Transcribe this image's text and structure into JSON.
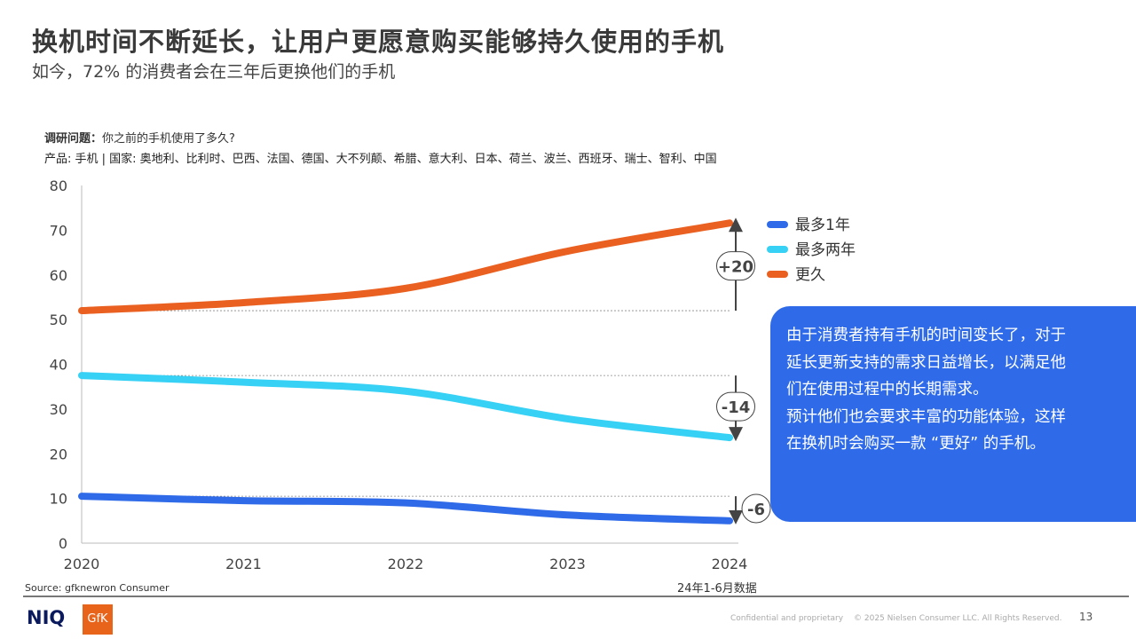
{
  "header": {
    "title": "换机时间不断延长，让用户更愿意购买能够持久使用的手机",
    "subtitle": "如今，72% 的消费者会在三年后更换他们的手机"
  },
  "survey": {
    "question_label": "调研问题：",
    "question": "你之前的手机使用了多久?",
    "product_line": "产品: 手机 | 国家: 奥地利、比利时、巴西、法国、德国、大不列颠、希腊、意大利、日本、荷兰、波兰、西班牙、瑞士、智利、中国"
  },
  "chart_data": {
    "type": "line",
    "x": [
      2020,
      2021,
      2022,
      2023,
      2024
    ],
    "x_tick_labels": [
      "2020",
      "2021",
      "2022",
      "2023",
      "2024"
    ],
    "y_ticks": [
      "0",
      "10",
      "20",
      "30",
      "40",
      "50",
      "60",
      "70",
      "80"
    ],
    "ylim": [
      0,
      80
    ],
    "grid": false,
    "legend_placement": "right",
    "series": [
      {
        "name": "最多1年",
        "color": "#2f6be9",
        "values": [
          10.5,
          9.5,
          9,
          6.3,
          5
        ]
      },
      {
        "name": "最多两年",
        "color": "#36d1f5",
        "values": [
          37.5,
          36,
          34,
          27.8,
          23.6
        ]
      },
      {
        "name": "更久",
        "color": "#ea6020",
        "values": [
          52,
          53.8,
          57,
          65.3,
          71.6
        ]
      }
    ],
    "annotations": [
      {
        "series": "更久",
        "label": "+20",
        "from": 52,
        "to": 72
      },
      {
        "series": "最多两年",
        "label": "-14",
        "from": 37.5,
        "to": 23.6
      },
      {
        "series": "最多1年",
        "label": "-6",
        "from": 10.5,
        "to": 5
      }
    ],
    "x_note": "24年1-6月数据"
  },
  "callout": [
    "由于消费者持有手机的时间变长了，对于",
    "延长更新支持的需求日益增长，以满足他",
    "们在使用过程中的长期需求。",
    "预计他们也会要求丰富的功能体验，这样",
    "在换机时会购买一款 “更好” 的手机。"
  ],
  "footer": {
    "source": "Source: gfknewron Consumer",
    "logo_niq": "NIQ",
    "logo_gfk": "GfK",
    "confidential": "Confidential and proprietary",
    "copyright": "© 2025 Nielsen Consumer LLC. All Rights Reserved.",
    "page": "13"
  }
}
